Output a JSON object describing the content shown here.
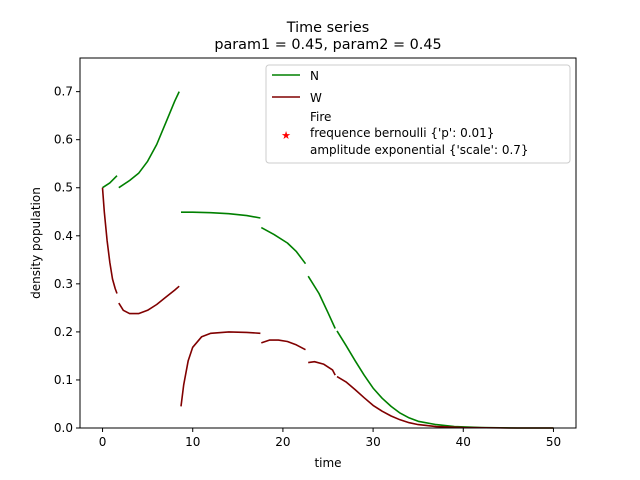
{
  "chart_data": {
    "type": "line",
    "title": "Time series",
    "subtitle": "param1 = 0.45, param2 = 0.45",
    "xlabel": "time",
    "ylabel": "density population",
    "xlim": [
      -2.5,
      52.5
    ],
    "ylim": [
      0,
      0.77
    ],
    "xticks": [
      0,
      10,
      20,
      30,
      40,
      50
    ],
    "yticks": [
      0.0,
      0.1,
      0.2,
      0.3,
      0.4,
      0.5,
      0.6,
      0.7
    ],
    "xtick_labels": [
      "0",
      "10",
      "20",
      "30",
      "40",
      "50"
    ],
    "ytick_labels": [
      "0.0",
      "0.1",
      "0.2",
      "0.3",
      "0.4",
      "0.5",
      "0.6",
      "0.7"
    ],
    "legend_position": "top-right",
    "legend": {
      "n_label": "N",
      "w_label": "W",
      "fire_label": "Fire",
      "fire_line2": "frequence bernoulli {'p': 0.01}",
      "fire_line3": "amplitude exponential {'scale': 0.7}"
    },
    "colors": {
      "N": "#008000",
      "W": "#800000",
      "Fire": "#ff0000"
    },
    "series": [
      {
        "name": "N",
        "segments": [
          [
            [
              0,
              0.5
            ],
            [
              0.8,
              0.51
            ],
            [
              1.6,
              0.525
            ]
          ],
          [
            [
              1.8,
              0.5
            ],
            [
              3,
              0.515
            ],
            [
              4,
              0.53
            ],
            [
              5,
              0.555
            ],
            [
              6,
              0.59
            ],
            [
              7,
              0.635
            ],
            [
              8,
              0.68
            ],
            [
              8.5,
              0.7
            ]
          ],
          [
            [
              8.7,
              0.449
            ],
            [
              10,
              0.449
            ],
            [
              12,
              0.448
            ],
            [
              14,
              0.446
            ],
            [
              16,
              0.442
            ],
            [
              17.5,
              0.437
            ]
          ],
          [
            [
              17.6,
              0.417
            ],
            [
              19,
              0.403
            ],
            [
              20.5,
              0.385
            ],
            [
              21.5,
              0.367
            ],
            [
              22.5,
              0.342
            ]
          ],
          [
            [
              22.8,
              0.316
            ],
            [
              24,
              0.28
            ],
            [
              25,
              0.24
            ],
            [
              25.8,
              0.207
            ]
          ],
          [
            [
              26.0,
              0.202
            ],
            [
              27,
              0.172
            ],
            [
              28,
              0.14
            ],
            [
              29,
              0.11
            ],
            [
              30,
              0.083
            ],
            [
              31,
              0.062
            ],
            [
              32,
              0.045
            ],
            [
              33,
              0.031
            ],
            [
              34,
              0.021
            ],
            [
              35,
              0.014
            ],
            [
              37,
              0.007
            ],
            [
              39,
              0.003
            ],
            [
              42,
              0.001
            ],
            [
              46,
              0.0
            ],
            [
              50,
              0.0
            ]
          ]
        ]
      },
      {
        "name": "W",
        "segments": [
          [
            [
              0,
              0.5
            ],
            [
              0.2,
              0.45
            ],
            [
              0.5,
              0.39
            ],
            [
              0.8,
              0.345
            ],
            [
              1.1,
              0.31
            ],
            [
              1.4,
              0.29
            ],
            [
              1.6,
              0.28
            ]
          ],
          [
            [
              1.8,
              0.26
            ],
            [
              2.3,
              0.245
            ],
            [
              3,
              0.238
            ],
            [
              4,
              0.238
            ],
            [
              5,
              0.245
            ],
            [
              6,
              0.257
            ],
            [
              7,
              0.272
            ],
            [
              8,
              0.287
            ],
            [
              8.5,
              0.295
            ]
          ],
          [
            [
              8.7,
              0.045
            ],
            [
              9,
              0.09
            ],
            [
              9.5,
              0.14
            ],
            [
              10,
              0.168
            ],
            [
              11,
              0.19
            ],
            [
              12,
              0.197
            ],
            [
              14,
              0.2
            ],
            [
              16,
              0.199
            ],
            [
              17.5,
              0.197
            ]
          ],
          [
            [
              17.6,
              0.177
            ],
            [
              18.5,
              0.183
            ],
            [
              19.5,
              0.183
            ],
            [
              20.5,
              0.18
            ],
            [
              21.5,
              0.173
            ],
            [
              22.5,
              0.163
            ]
          ],
          [
            [
              22.8,
              0.136
            ],
            [
              23.5,
              0.138
            ],
            [
              24.5,
              0.133
            ],
            [
              25.5,
              0.121
            ],
            [
              25.8,
              0.11
            ]
          ],
          [
            [
              26.0,
              0.107
            ],
            [
              27,
              0.096
            ],
            [
              28,
              0.08
            ],
            [
              29,
              0.063
            ],
            [
              30,
              0.047
            ],
            [
              31,
              0.035
            ],
            [
              32,
              0.025
            ],
            [
              33,
              0.017
            ],
            [
              34,
              0.011
            ],
            [
              35,
              0.007
            ],
            [
              37,
              0.003
            ],
            [
              40,
              0.001
            ],
            [
              45,
              0.0
            ],
            [
              50,
              0.0
            ]
          ]
        ]
      }
    ]
  }
}
